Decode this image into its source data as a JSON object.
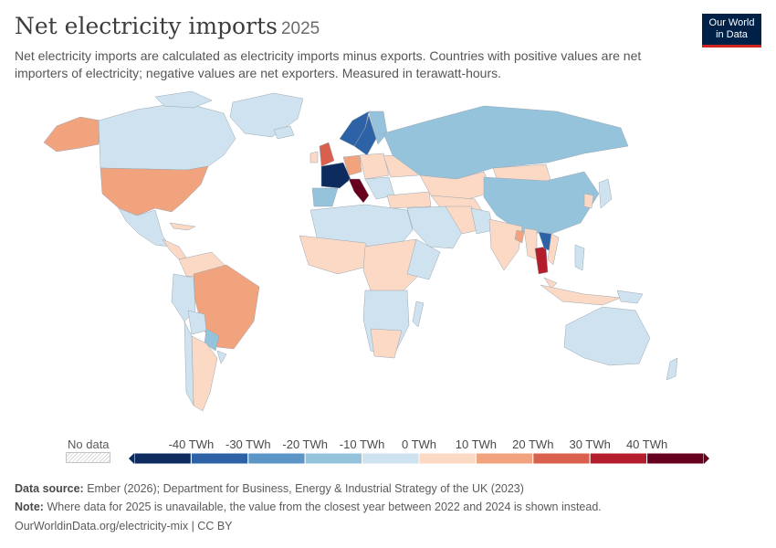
{
  "header": {
    "title": "Net electricity imports",
    "year": "2025",
    "subtitle": "Net electricity imports are calculated as electricity imports minus exports. Countries with positive values are net importers of electricity; negative values are net exporters. Measured in terawatt-hours."
  },
  "logo": {
    "line1": "Our World",
    "line2": "in Data"
  },
  "legend": {
    "no_data_label": "No data",
    "tick_labels": [
      "-40 TWh",
      "-30 TWh",
      "-20 TWh",
      "-10 TWh",
      "0 TWh",
      "10 TWh",
      "20 TWh",
      "30 TWh",
      "40 TWh"
    ],
    "bins": [
      {
        "from": "-50",
        "to": "-40",
        "color": "#0d2b5e"
      },
      {
        "from": "-40",
        "to": "-30",
        "color": "#2e62a7"
      },
      {
        "from": "-30",
        "to": "-20",
        "color": "#5b96c6"
      },
      {
        "from": "-20",
        "to": "-10",
        "color": "#95c3dc"
      },
      {
        "from": "-10",
        "to": "0",
        "color": "#cfe2ef"
      },
      {
        "from": "0",
        "to": "10",
        "color": "#fbd9c4"
      },
      {
        "from": "10",
        "to": "20",
        "color": "#f1a37e"
      },
      {
        "from": "20",
        "to": "30",
        "color": "#d9604d"
      },
      {
        "from": "30",
        "to": "40",
        "color": "#b31d2c"
      },
      {
        "from": "40",
        "to": "50",
        "color": "#67001f"
      }
    ]
  },
  "footer": {
    "source_label": "Data source:",
    "source_text": "Ember (2026); Department for Business, Energy & Industrial Strategy of the UK (2023)",
    "note_label": "Note:",
    "note_text": "Where data for 2025 is unavailable, the value from the closest year between 2022 and 2024 is shown instead.",
    "url": "OurWorldinData.org/electricity-mix | CC BY"
  }
}
